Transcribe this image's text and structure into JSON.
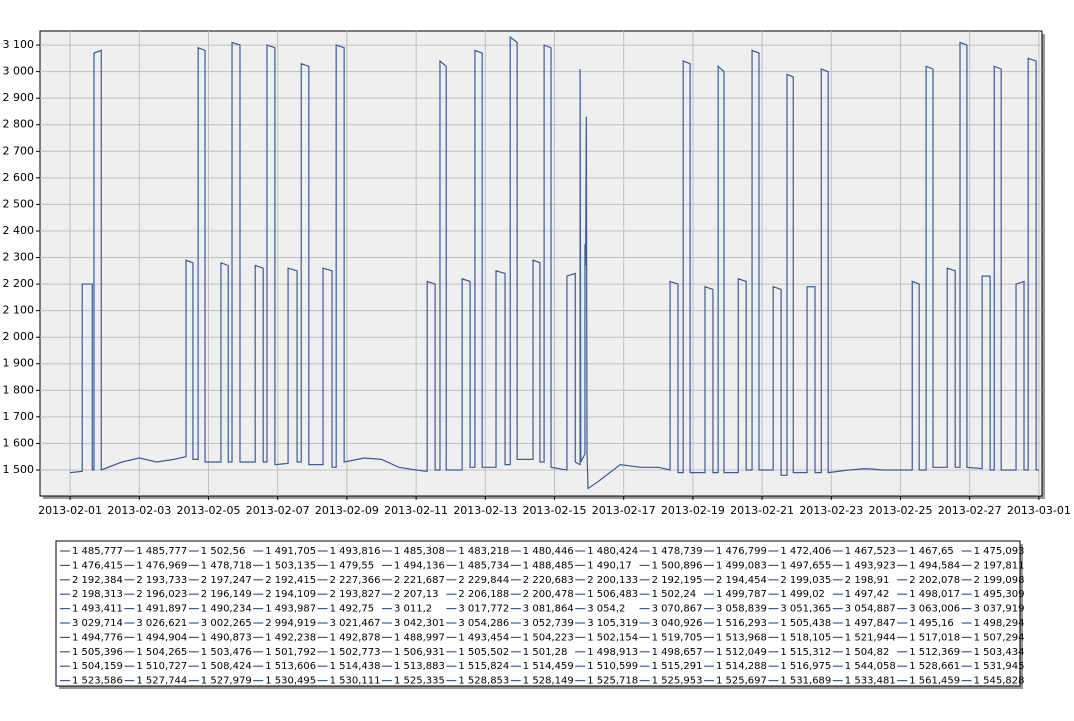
{
  "chart_data": {
    "type": "line",
    "color": "#3b5b9b",
    "grid": true,
    "xlim": [
      -0.87,
      28.09
    ],
    "ylim": [
      1402,
      3153
    ],
    "xticks": [
      {
        "value": 0,
        "label": "2013-02-01"
      },
      {
        "value": 2,
        "label": "2013-02-03"
      },
      {
        "value": 4,
        "label": "2013-02-05"
      },
      {
        "value": 6,
        "label": "2013-02-07"
      },
      {
        "value": 8,
        "label": "2013-02-09"
      },
      {
        "value": 10,
        "label": "2013-02-11"
      },
      {
        "value": 12,
        "label": "2013-02-13"
      },
      {
        "value": 14,
        "label": "2013-02-15"
      },
      {
        "value": 16,
        "label": "2013-02-17"
      },
      {
        "value": 18,
        "label": "2013-02-19"
      },
      {
        "value": 20,
        "label": "2013-02-21"
      },
      {
        "value": 22,
        "label": "2013-02-23"
      },
      {
        "value": 24,
        "label": "2013-02-25"
      },
      {
        "value": 26,
        "label": "2013-02-27"
      },
      {
        "value": 28,
        "label": "2013-03-01"
      }
    ],
    "yticks": [
      {
        "value": 1500,
        "label": "1 500"
      },
      {
        "value": 1600,
        "label": "1 600"
      },
      {
        "value": 1700,
        "label": "1 700"
      },
      {
        "value": 1800,
        "label": "1 800"
      },
      {
        "value": 1900,
        "label": "1 900"
      },
      {
        "value": 2000,
        "label": "2 000"
      },
      {
        "value": 2100,
        "label": "2 100"
      },
      {
        "value": 2200,
        "label": "2 200"
      },
      {
        "value": 2300,
        "label": "2 300"
      },
      {
        "value": 2400,
        "label": "2 400"
      },
      {
        "value": 2500,
        "label": "2 500"
      },
      {
        "value": 2600,
        "label": "2 600"
      },
      {
        "value": 2700,
        "label": "2 700"
      },
      {
        "value": 2800,
        "label": "2 800"
      },
      {
        "value": 2900,
        "label": "2 900"
      },
      {
        "value": 3000,
        "label": "3 000"
      },
      {
        "value": 3100,
        "label": "3 100"
      }
    ],
    "x": [
      0,
      0.35,
      0.35,
      0.64,
      0.64,
      0.69,
      0.69,
      0.9,
      0.9,
      1.5,
      2,
      2.5,
      3,
      3.35,
      3.35,
      3.55,
      3.55,
      3.7,
      3.7,
      3.9,
      3.9,
      4.36,
      4.36,
      4.57,
      4.57,
      4.68,
      4.68,
      4.91,
      4.91,
      5.35,
      5.35,
      5.58,
      5.58,
      5.69,
      5.69,
      5.92,
      5.92,
      6.3,
      6.3,
      6.56,
      6.56,
      6.68,
      6.68,
      6.9,
      6.9,
      7.31,
      7.31,
      7.57,
      7.57,
      7.69,
      7.69,
      7.92,
      7.92,
      8.5,
      9,
      9.5,
      10,
      10.32,
      10.32,
      10.55,
      10.55,
      10.69,
      10.69,
      10.87,
      10.87,
      11.33,
      11.33,
      11.56,
      11.56,
      11.7,
      11.7,
      11.91,
      11.91,
      12.31,
      12.31,
      12.57,
      12.57,
      12.72,
      12.72,
      12.92,
      12.92,
      13.38,
      13.38,
      13.58,
      13.58,
      13.7,
      13.7,
      13.9,
      13.9,
      14.36,
      14.36,
      14.6,
      14.6,
      14.74,
      14.74,
      14.76,
      14.88,
      14.88,
      14.9,
      14.92,
      14.94,
      14.97,
      15.3,
      15.9,
      16.5,
      17,
      17.34,
      17.34,
      17.57,
      17.57,
      17.72,
      17.72,
      17.92,
      17.92,
      18.35,
      18.35,
      18.58,
      18.58,
      18.73,
      18.73,
      18.9,
      18.9,
      19.31,
      19.31,
      19.54,
      19.54,
      19.71,
      19.71,
      19.91,
      19.91,
      20.32,
      20.32,
      20.55,
      20.55,
      20.72,
      20.72,
      20.9,
      20.9,
      21.3,
      21.3,
      21.53,
      21.53,
      21.71,
      21.71,
      21.91,
      21.91,
      22.5,
      23,
      23.5,
      24,
      24.34,
      24.34,
      24.54,
      24.54,
      24.74,
      24.74,
      24.94,
      24.94,
      25.35,
      25.35,
      25.58,
      25.58,
      25.72,
      25.72,
      25.92,
      25.92,
      26.36,
      26.36,
      26.59,
      26.59,
      26.71,
      26.71,
      26.91,
      26.91,
      27.34,
      27.34,
      27.57,
      27.57,
      27.69,
      27.69,
      27.92,
      27.92,
      28
    ],
    "values": [
      1490,
      1495,
      2200,
      2200,
      1500,
      1500,
      3070,
      3080,
      1500,
      1530,
      1545,
      1530,
      1540,
      1550,
      2290,
      2280,
      1540,
      1540,
      3090,
      3080,
      1530,
      1530,
      2280,
      2270,
      1530,
      1530,
      3110,
      3100,
      1530,
      1530,
      2270,
      2260,
      1530,
      1530,
      3100,
      3090,
      1520,
      1525,
      2260,
      2250,
      1530,
      1530,
      3030,
      3020,
      1520,
      1520,
      2260,
      2250,
      1510,
      1510,
      3100,
      3090,
      1530,
      1545,
      1540,
      1510,
      1500,
      1495,
      2210,
      2200,
      1500,
      1500,
      3040,
      3020,
      1500,
      1500,
      2220,
      2210,
      1510,
      1510,
      3080,
      3070,
      1510,
      1510,
      2250,
      2240,
      1520,
      1520,
      3130,
      3110,
      1540,
      1540,
      2290,
      2280,
      1530,
      1530,
      3100,
      3090,
      1510,
      1500,
      2230,
      2240,
      1530,
      1520,
      3010,
      1530,
      1560,
      2350,
      2270,
      2830,
      1560,
      1430,
      1460,
      1520,
      1510,
      1510,
      1500,
      2210,
      2200,
      1490,
      1490,
      3040,
      3030,
      1490,
      1490,
      2190,
      2180,
      1490,
      1490,
      3020,
      3000,
      1490,
      1490,
      2220,
      2210,
      1500,
      1500,
      3080,
      3070,
      1500,
      1500,
      2190,
      2180,
      1480,
      1480,
      2990,
      2980,
      1490,
      1490,
      2190,
      2190,
      1490,
      1490,
      3010,
      3000,
      1490,
      1500,
      1505,
      1500,
      1500,
      1500,
      2210,
      2200,
      1500,
      1500,
      3020,
      3010,
      1510,
      1510,
      2260,
      2250,
      1510,
      1510,
      3110,
      3100,
      1510,
      1505,
      2230,
      2230,
      1500,
      1500,
      3020,
      3010,
      1500,
      1500,
      2200,
      2210,
      1500,
      1500,
      3050,
      3040,
      1500,
      1500
    ],
    "legend_values": [
      [
        "1 485,777",
        "1 485,777",
        "1 502,56",
        "1 491,705",
        "1 493,816",
        "1 485,308",
        "1 483,218",
        "1 480,446",
        "1 480,424",
        "1 478,739",
        "1 476,799",
        "1 472,406",
        "1 467,523",
        "1 467,65",
        "1 475,093"
      ],
      [
        "1 476,415",
        "1 476,969",
        "1 478,718",
        "1 503,135",
        "1 479,55",
        "1 494,136",
        "1 485,734",
        "1 488,485",
        "1 490,17",
        "1 500,896",
        "1 499,083",
        "1 497,655",
        "1 493,923",
        "1 494,584",
        "2 197,811"
      ],
      [
        "2 192,384",
        "2 193,733",
        "2 197,247",
        "2 192,415",
        "2 227,366",
        "2 221,687",
        "2 229,844",
        "2 220,683",
        "2 200,133",
        "2 192,195",
        "2 194,454",
        "2 199,035",
        "2 198,91",
        "2 202,078",
        "2 199,098"
      ],
      [
        "2 198,313",
        "2 196,023",
        "2 196,149",
        "2 194,109",
        "2 193,827",
        "2 207,13",
        "2 206,188",
        "2 200,478",
        "1 506,483",
        "1 502,24",
        "1 499,787",
        "1 499,02",
        "1 497,42",
        "1 498,017",
        "1 495,309"
      ],
      [
        "1 493,411",
        "1 491,897",
        "1 490,234",
        "1 493,987",
        "1 492,75",
        "3 011,2",
        "3 017,772",
        "3 081,864",
        "3 054,2",
        "3 070,867",
        "3 058,839",
        "3 051,365",
        "3 054,887",
        "3 063,006",
        "3 037,919"
      ],
      [
        "3 029,714",
        "3 026,621",
        "3 002,265",
        "2 994,919",
        "3 021,467",
        "3 042,301",
        "3 054,286",
        "3 052,739",
        "3 105,319",
        "3 040,926",
        "1 516,293",
        "1 505,438",
        "1 497,847",
        "1 495,16",
        "1 498,294"
      ],
      [
        "1 494,776",
        "1 494,904",
        "1 490,873",
        "1 492,238",
        "1 492,878",
        "1 488,997",
        "1 493,454",
        "1 504,223",
        "1 502,154",
        "1 519,705",
        "1 513,968",
        "1 518,105",
        "1 521,944",
        "1 517,018",
        "1 507,294"
      ],
      [
        "1 505,396",
        "1 504,265",
        "1 503,476",
        "1 501,792",
        "1 502,773",
        "1 506,931",
        "1 505,502",
        "1 501,28",
        "1 498,913",
        "1 498,657",
        "1 512,049",
        "1 515,312",
        "1 504,82",
        "1 512,369",
        "1 503,434"
      ],
      [
        "1 504,159",
        "1 510,727",
        "1 508,424",
        "1 513,606",
        "1 514,438",
        "1 513,883",
        "1 515,824",
        "1 514,459",
        "1 510,599",
        "1 515,291",
        "1 514,288",
        "1 516,975",
        "1 544,058",
        "1 528,661",
        "1 531,945"
      ],
      [
        "1 523,586",
        "1 527,744",
        "1 527,979",
        "1 530,495",
        "1 530,111",
        "1 525,335",
        "1 528,853",
        "1 528,149",
        "1 525,718",
        "1 525,953",
        "1 525,697",
        "1 531,689",
        "1 533,481",
        "1 561,459",
        "1 545,828"
      ]
    ]
  }
}
